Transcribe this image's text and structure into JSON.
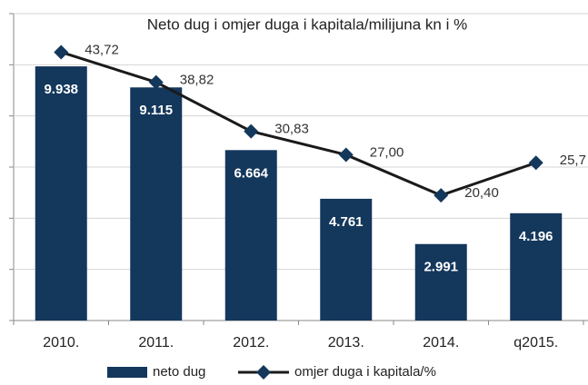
{
  "chart_data": {
    "type": "bar-line",
    "title": "Neto dug i omjer duga i kapitala/milijuna kn i %",
    "categories": [
      "2010.",
      "2011.",
      "2012.",
      "2013.",
      "2014.",
      "q2015."
    ],
    "series": [
      {
        "name": "neto dug",
        "type": "bar",
        "color": "#14375c",
        "values": [
          9938,
          9115,
          6664,
          4761,
          2991,
          4196
        ],
        "value_labels": [
          "9.938",
          "9.115",
          "6.664",
          "4.761",
          "2.991",
          "4.196"
        ]
      },
      {
        "name": "omjer duga i kapitala/%",
        "type": "line",
        "axis": "y2",
        "color": "#1a1a1a",
        "marker_color": "#14375c",
        "values": [
          43.72,
          38.82,
          30.83,
          27.0,
          20.4,
          25.7
        ],
        "value_labels": [
          "43,72",
          "38,82",
          "30,83",
          "27,00",
          "20,40",
          "25,7"
        ]
      }
    ],
    "ylim": [
      0,
      12000
    ],
    "yticks": [
      0,
      2000,
      4000,
      6000,
      8000,
      10000,
      12000
    ],
    "y2lim": [
      0,
      50
    ],
    "grid": true,
    "legend": "bottom"
  }
}
